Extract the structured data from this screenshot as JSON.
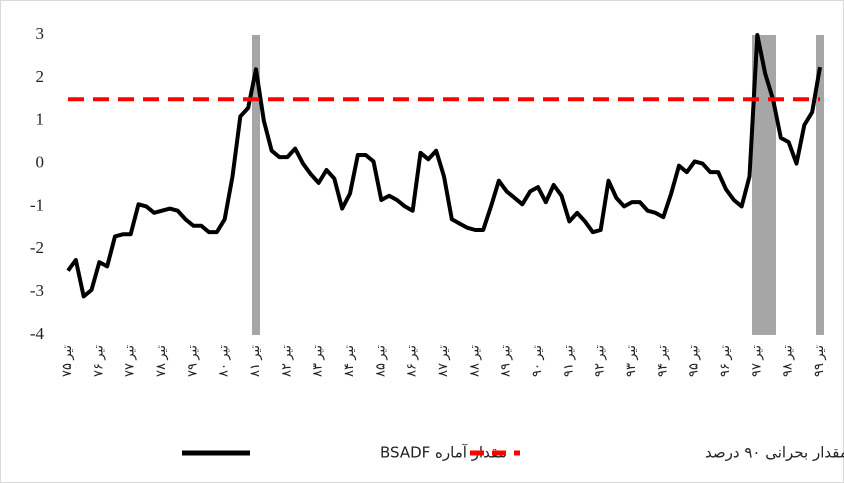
{
  "chart_data": {
    "type": "line",
    "categories": [
      "تیر ۷۵",
      null,
      null,
      null,
      "تیر ۷۶",
      null,
      null,
      null,
      "تیر ۷۷",
      null,
      null,
      null,
      "تیر ۷۸",
      null,
      null,
      null,
      "تیر ۷۹",
      null,
      null,
      null,
      "تیر ۸۰",
      null,
      null,
      null,
      "تیر ۸۱",
      null,
      null,
      null,
      "تیر ۸۲",
      null,
      null,
      null,
      "تیر ۸۳",
      null,
      null,
      null,
      "تیر ۸۴",
      null,
      null,
      null,
      "تیر ۸۵",
      null,
      null,
      null,
      "تیر ۸۶",
      null,
      null,
      null,
      "تیر ۸۷",
      null,
      null,
      null,
      "تیر ۸۸",
      null,
      null,
      null,
      "تیر ۸۹",
      null,
      null,
      null,
      "تیر ۹۰",
      null,
      null,
      null,
      "تیر ۹۱",
      null,
      null,
      null,
      "تیر ۹۲",
      null,
      null,
      null,
      "تیر ۹۳",
      null,
      null,
      null,
      "تیر ۹۴",
      null,
      null,
      null,
      "تیر ۹۵",
      null,
      null,
      null,
      "تیر ۹۶",
      null,
      null,
      null,
      "تیر ۹۷",
      null,
      null,
      null,
      "تیر ۹۸",
      null,
      null,
      null,
      "تیر ۹۹"
    ],
    "series": [
      {
        "name": "مقدار آماره BSADF",
        "color": "#000000",
        "values": [
          -2.5,
          -2.25,
          -3.1,
          -2.95,
          -2.3,
          -2.4,
          -1.7,
          -1.65,
          -1.65,
          -0.95,
          -1.0,
          -1.15,
          -1.1,
          -1.05,
          -1.1,
          -1.3,
          -1.45,
          -1.45,
          -1.6,
          -1.6,
          -1.3,
          -0.3,
          1.1,
          1.3,
          2.2,
          1.0,
          0.3,
          0.15,
          0.15,
          0.35,
          0.0,
          -0.25,
          -0.45,
          -0.15,
          -0.35,
          -1.05,
          -0.7,
          0.2,
          0.2,
          0.05,
          -0.85,
          -0.75,
          -0.85,
          -1.0,
          -1.1,
          0.25,
          0.1,
          0.3,
          -0.3,
          -1.3,
          -1.4,
          -1.5,
          -1.55,
          -1.55,
          -1.0,
          -0.4,
          -0.65,
          -0.8,
          -0.95,
          -0.65,
          -0.55,
          -0.9,
          -0.5,
          -0.75,
          -1.35,
          -1.15,
          -1.35,
          -1.6,
          -1.55,
          -0.4,
          -0.8,
          -1.0,
          -0.9,
          -0.9,
          -1.1,
          -1.15,
          -1.25,
          -0.7,
          -0.05,
          -0.2,
          0.05,
          0.0,
          -0.2,
          -0.2,
          -0.6,
          -0.85,
          -1.0,
          -0.3,
          3.0,
          2.1,
          1.5,
          0.6,
          0.5,
          0.0,
          0.9,
          1.2,
          2.25
        ]
      },
      {
        "name": "مقدار بحرانی ۹۰ درصد",
        "color": "#ff0000",
        "value": 1.5,
        "dashed": true
      }
    ],
    "ylim": [
      -4,
      3
    ],
    "yticks": [
      3,
      2,
      1,
      0,
      -1,
      -2,
      -3,
      -4
    ],
    "grid": false
  }
}
